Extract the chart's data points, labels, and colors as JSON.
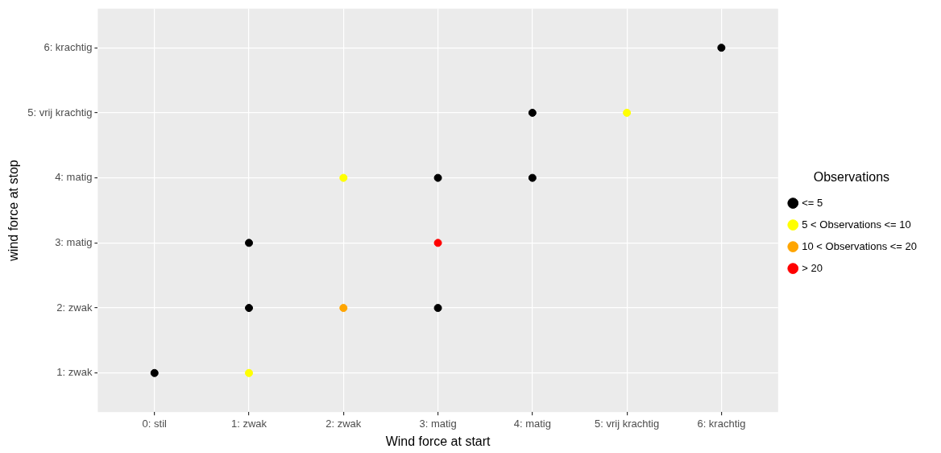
{
  "chart_data": {
    "type": "scatter",
    "xlabel": "Wind force at start",
    "ylabel": "wind force at stop",
    "legend_title": "Observations",
    "categories": [
      "0: stil",
      "1: zwak",
      "2: zwak",
      "3: matig",
      "4: matig",
      "5: vrij krachtig",
      "6: krachtig"
    ],
    "ylim": [
      0.4,
      6.6
    ],
    "yticks": [
      {
        "value": 1,
        "label": "1: zwak"
      },
      {
        "value": 2,
        "label": "2: zwak"
      },
      {
        "value": 3,
        "label": "3: matig"
      },
      {
        "value": 4,
        "label": "4: matig"
      },
      {
        "value": 5,
        "label": "5: vrij krachtig"
      },
      {
        "value": 6,
        "label": "6: krachtig"
      }
    ],
    "series": [
      {
        "name": "<= 5",
        "color": "#000000",
        "x": [
          "0: stil",
          "1: zwak",
          "1: zwak",
          "3: matig",
          "3: matig",
          "4: matig",
          "4: matig",
          "6: krachtig"
        ],
        "values": [
          1,
          2,
          3,
          2,
          4,
          4,
          5,
          6
        ]
      },
      {
        "name": "5 < Observations <= 10",
        "color": "#ffff00",
        "x": [
          "1: zwak",
          "2: zwak",
          "5: vrij krachtig"
        ],
        "values": [
          1,
          4,
          5
        ]
      },
      {
        "name": "10 < Observations <= 20",
        "color": "#ffa500",
        "x": [
          "2: zwak"
        ],
        "values": [
          2
        ]
      },
      {
        "name": "> 20",
        "color": "#ff0000",
        "x": [
          "3: matig"
        ],
        "values": [
          3
        ]
      }
    ],
    "grid": true,
    "legend": "right",
    "marker": "circle"
  }
}
